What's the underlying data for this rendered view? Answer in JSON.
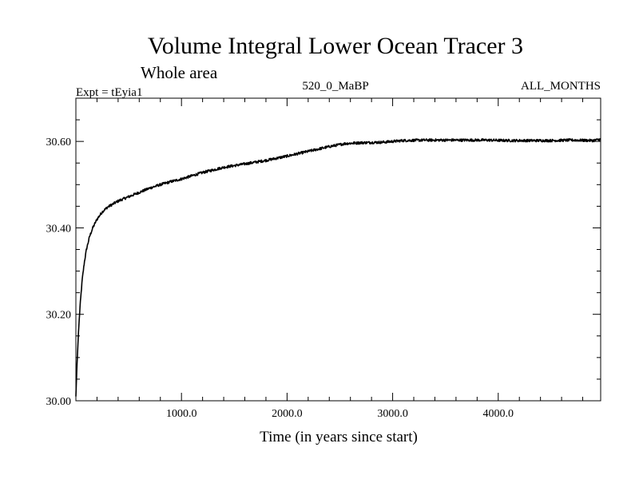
{
  "chart_data": {
    "type": "line",
    "title": "Volume Integral Lower Ocean Tracer 3",
    "subtitle": "Whole area",
    "expt_label": "Expt = tEyia1",
    "period_label": "520_0_MaBP",
    "months_label": "ALL_MONTHS",
    "xlabel": "Time (in years since start)",
    "ylabel": "",
    "xlim": [
      0,
      4970
    ],
    "ylim": [
      30.0,
      30.7
    ],
    "x_major_ticks": [
      1000,
      2000,
      3000,
      4000
    ],
    "x_tick_labels": [
      "1000.0",
      "2000.0",
      "3000.0",
      "4000.0"
    ],
    "x_minor_step": 200,
    "y_major_ticks": [
      30.0,
      30.2,
      30.4,
      30.6
    ],
    "y_tick_labels": [
      "30.00",
      "30.20",
      "30.40",
      "30.60"
    ],
    "y_minor_step": 0.05,
    "grid": false,
    "series": [
      {
        "name": "Volume Integral Lower Ocean Tracer 3",
        "color": "#000000",
        "noise": 0.003,
        "x": [
          0,
          10,
          25,
          40,
          60,
          80,
          100,
          130,
          160,
          200,
          250,
          300,
          350,
          400,
          500,
          600,
          700,
          800,
          900,
          1000,
          1200,
          1400,
          1600,
          1800,
          2000,
          2200,
          2400,
          2550,
          2700,
          2900,
          3100,
          3300,
          3500,
          3700,
          3900,
          4100,
          4300,
          4500,
          4700,
          4900,
          4970
        ],
        "values": [
          30.01,
          30.08,
          30.16,
          30.22,
          30.28,
          30.32,
          30.35,
          30.38,
          30.4,
          30.42,
          30.437,
          30.448,
          30.455,
          30.462,
          30.472,
          30.482,
          30.492,
          30.5,
          30.507,
          30.513,
          30.528,
          30.54,
          30.548,
          30.556,
          30.566,
          30.577,
          30.588,
          30.595,
          30.597,
          30.598,
          30.602,
          30.603,
          30.603,
          30.603,
          30.603,
          30.602,
          30.602,
          30.602,
          30.603,
          30.602,
          30.605
        ]
      }
    ]
  }
}
